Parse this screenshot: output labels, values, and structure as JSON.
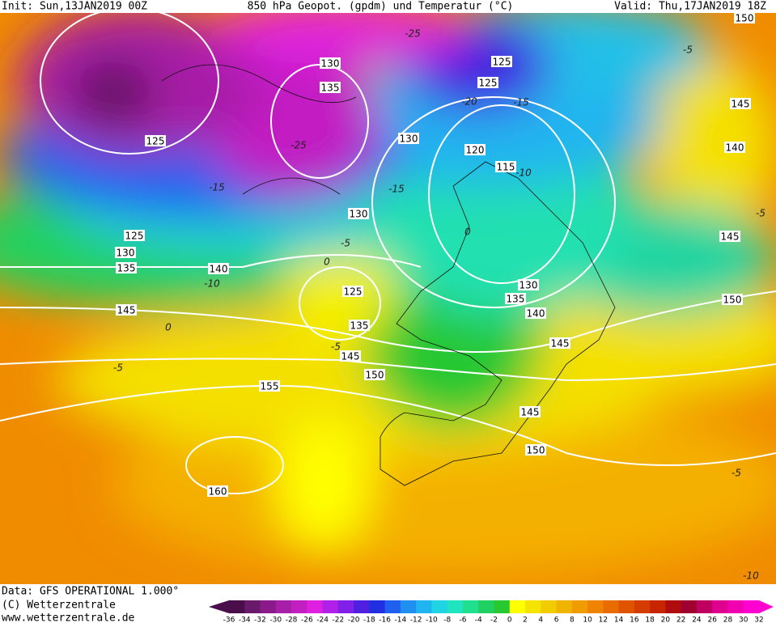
{
  "header": {
    "init": "Init: Sun,13JAN2019 00Z",
    "title": "850 hPa Geopot. (gpdm) und Temperatur (°C)",
    "valid": "Valid: Thu,17JAN2019 18Z"
  },
  "footer": {
    "data": "Data: GFS OPERATIONAL 1.000°",
    "copyright": "(C) Wetterzentrale",
    "url": "www.wetterzentrale.de"
  },
  "legend": {
    "ticks": [
      -36,
      -34,
      -32,
      -30,
      -28,
      -26,
      -24,
      -22,
      -20,
      -18,
      -16,
      -14,
      -12,
      -10,
      -8,
      -6,
      -4,
      -2,
      0,
      2,
      4,
      6,
      8,
      10,
      12,
      14,
      16,
      18,
      20,
      22,
      24,
      26,
      28,
      30,
      32
    ],
    "colors": [
      "#4a0f4a",
      "#6a1a6a",
      "#8a1a8a",
      "#a61fa6",
      "#c21fc2",
      "#e020e0",
      "#b020e8",
      "#8020e8",
      "#5020e0",
      "#2030e0",
      "#2060f0",
      "#2090f0",
      "#20b4f0",
      "#20d4e4",
      "#20e4c0",
      "#20e090",
      "#20d060",
      "#28c830",
      "#ffff00",
      "#f4e400",
      "#f0cc00",
      "#f0b400",
      "#f09c00",
      "#f08400",
      "#e86c00",
      "#e05400",
      "#d43c00",
      "#c82400",
      "#b00c10",
      "#a00030",
      "#c00060",
      "#e00090",
      "#f000b0",
      "#ff00d0"
    ]
  },
  "map": {
    "geopotential_labels": [
      "130",
      "135",
      "125",
      "130",
      "120",
      "115",
      "125",
      "125",
      "150",
      "145",
      "140",
      "130",
      "125",
      "130",
      "135",
      "140",
      "145",
      "125",
      "135",
      "145",
      "150",
      "155",
      "160",
      "130",
      "135",
      "140",
      "145",
      "145",
      "150",
      "145",
      "150"
    ],
    "temperature_labels": [
      "-25",
      "-20",
      "-15",
      "-25",
      "-15",
      "-15",
      "-10",
      "-5",
      "0",
      "0",
      "-5",
      "-5",
      "-5",
      "-5",
      "-5",
      "-10",
      "0",
      "-10"
    ]
  }
}
